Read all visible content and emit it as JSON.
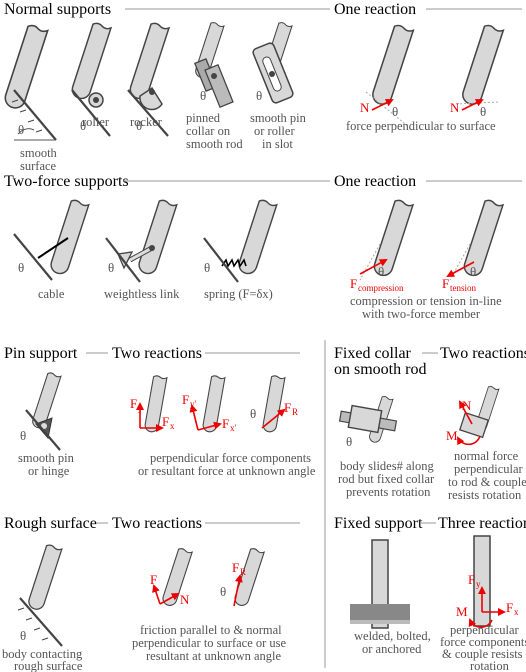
{
  "sections": {
    "normal": {
      "title": "Normal supports",
      "reaction": "One reaction",
      "labels": [
        "smooth",
        "surface",
        "roller",
        "rocker",
        "pinned",
        "collar on",
        "smooth rod",
        "smooth pin",
        "or roller",
        "in slot"
      ],
      "note": "force perpendicular to surface"
    },
    "twoforce": {
      "title": "Two-force supports",
      "reaction": "One reaction",
      "labels": [
        "cable",
        "weightless link",
        "spring (F=δx)"
      ],
      "note1": "compression or tension in-line",
      "note2": "with two-force member",
      "f1": "F",
      "f1sub": "compression",
      "f2": "F",
      "f2sub": "tension"
    },
    "pin": {
      "title": "Pin support",
      "reaction": "Two reactions",
      "labels": [
        "smooth pin",
        "or hinge"
      ],
      "note1": "perpendicular force components",
      "note2": "or resultant force at unknown angle"
    },
    "collar": {
      "title1": "Fixed collar",
      "title2": "on smooth rod",
      "reaction": "Two reactions",
      "labels": [
        "body slides# along",
        "rod but fixed collar",
        "prevents rotation"
      ],
      "note": [
        "normal force",
        "perpendicular",
        "to rod & couple",
        "resists rotation"
      ]
    },
    "rough": {
      "title": "Rough surface",
      "reaction": "Two reactions",
      "labels": [
        "body contacting",
        "rough surface"
      ],
      "note1": "friction parallel to & normal",
      "note2": "perpendicular to surface or use",
      "note3": "resultant at unknown angle"
    },
    "fixed": {
      "title": "Fixed support",
      "reaction": "Three reactions",
      "labels": [
        "welded, bolted,",
        "or anchored"
      ],
      "note": [
        "perpendicular",
        "force components",
        "& couple resists",
        "rotation"
      ]
    }
  },
  "symbols": {
    "theta": "θ",
    "N": "N",
    "F": "F",
    "M": "M",
    "Fx": "F",
    "x": "x",
    "y": "y",
    "xp": "x'",
    "yp": "y'",
    "R": "R"
  }
}
